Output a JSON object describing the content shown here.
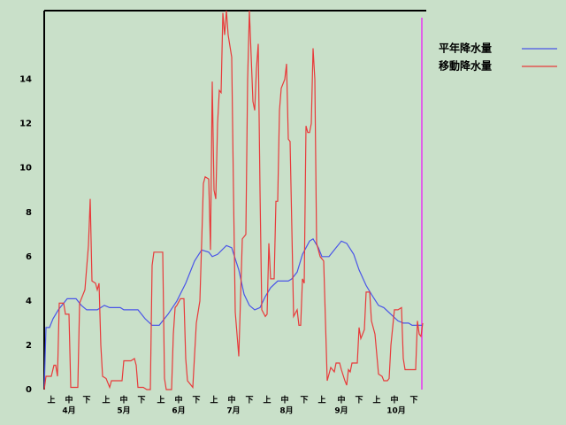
{
  "chart_data": {
    "type": "line",
    "xlim": [
      0,
      214
    ],
    "ylim": [
      0,
      17.1
    ],
    "yticks": [
      0,
      2,
      4,
      6,
      8,
      10,
      12,
      14
    ],
    "xticks": [
      {
        "value": 4,
        "label": "上"
      },
      {
        "value": 14,
        "label": "中"
      },
      {
        "value": 24,
        "label": "下"
      },
      {
        "value": 35,
        "label": "上"
      },
      {
        "value": 45,
        "label": "中"
      },
      {
        "value": 55,
        "label": "下"
      },
      {
        "value": 66,
        "label": "上"
      },
      {
        "value": 76,
        "label": "中"
      },
      {
        "value": 86,
        "label": "下"
      },
      {
        "value": 96,
        "label": "上"
      },
      {
        "value": 106,
        "label": "中"
      },
      {
        "value": 116,
        "label": "下"
      },
      {
        "value": 126,
        "label": "上"
      },
      {
        "value": 136,
        "label": "中"
      },
      {
        "value": 147,
        "label": "下"
      },
      {
        "value": 157,
        "label": "上"
      },
      {
        "value": 168,
        "label": "中"
      },
      {
        "value": 178,
        "label": "下"
      },
      {
        "value": 188,
        "label": "上"
      },
      {
        "value": 198,
        "label": "中"
      },
      {
        "value": 209,
        "label": "下"
      }
    ],
    "month_ticks": [
      {
        "value": 14,
        "label": "4月"
      },
      {
        "value": 45,
        "label": "5月"
      },
      {
        "value": 76,
        "label": "6月"
      },
      {
        "value": 107,
        "label": "7月"
      },
      {
        "value": 137,
        "label": "8月"
      },
      {
        "value": 168,
        "label": "9月"
      },
      {
        "value": 199,
        "label": "10月"
      }
    ],
    "series": [
      {
        "name": "平年降水量",
        "color": "#4a55e8",
        "x": [
          0,
          1,
          3,
          5,
          8,
          11,
          13,
          18,
          21,
          24,
          30,
          34,
          37,
          43,
          45,
          53,
          57,
          61,
          65,
          70,
          75,
          80,
          85,
          89,
          93,
          95,
          98,
          103,
          106,
          110,
          113,
          116,
          119,
          122,
          125,
          128,
          132,
          138,
          140,
          143,
          146,
          150,
          152,
          155,
          157,
          161,
          165,
          168,
          171,
          175,
          178,
          182,
          185,
          189,
          192,
          196,
          200,
          203,
          206,
          208,
          214
        ],
        "values": [
          0,
          2.8,
          2.8,
          3.2,
          3.6,
          3.9,
          4.1,
          4.1,
          3.8,
          3.6,
          3.6,
          3.8,
          3.7,
          3.7,
          3.6,
          3.6,
          3.2,
          2.9,
          2.9,
          3.4,
          4,
          4.8,
          5.8,
          6.3,
          6.2,
          6,
          6.1,
          6.5,
          6.4,
          5.4,
          4.3,
          3.8,
          3.6,
          3.7,
          4.2,
          4.6,
          4.9,
          4.9,
          5,
          5.3,
          6.1,
          6.7,
          6.8,
          6.4,
          6,
          6,
          6.4,
          6.7,
          6.6,
          6.1,
          5.4,
          4.7,
          4.3,
          3.8,
          3.7,
          3.4,
          3.1,
          3,
          3,
          2.9,
          2.9
        ]
      },
      {
        "name": "移動降水量",
        "color": "#e83a3a",
        "x": [
          0,
          1,
          4,
          5.5,
          6.5,
          7.5,
          8.5,
          11,
          12,
          14,
          15,
          19,
          20,
          23,
          25,
          26,
          27,
          29,
          30,
          31,
          32,
          33,
          35,
          37,
          38,
          44,
          45,
          49,
          51,
          52,
          53,
          56,
          58,
          60,
          61,
          62,
          67,
          68,
          69,
          72,
          73,
          74,
          75,
          77,
          79,
          80,
          81,
          84,
          86,
          88,
          89,
          90,
          91,
          93,
          94,
          95,
          96,
          97,
          98,
          99,
          100,
          101,
          102,
          103,
          104,
          106,
          107,
          108,
          110,
          112,
          114,
          115,
          116,
          118,
          119,
          120,
          121,
          122,
          123,
          125,
          126,
          127,
          128,
          130,
          131,
          132,
          133,
          134,
          136,
          137,
          138,
          139,
          141,
          143,
          144,
          145,
          146,
          147,
          148,
          149,
          150,
          151,
          152,
          153,
          154,
          156,
          158,
          160,
          162,
          164,
          165,
          167,
          168,
          170,
          171,
          172,
          173,
          174,
          177,
          178,
          179,
          181,
          182,
          184,
          185,
          187,
          189,
          191,
          192,
          194,
          195,
          196,
          198,
          200,
          202,
          203,
          204,
          210,
          211,
          212,
          213,
          214
        ],
        "values": [
          0,
          0.6,
          0.6,
          1.1,
          1.1,
          0.6,
          3.9,
          3.9,
          3.4,
          3.4,
          0.1,
          0.1,
          3.9,
          4.5,
          6.5,
          8.6,
          4.9,
          4.8,
          4.5,
          4.8,
          2,
          0.6,
          0.5,
          0.1,
          0.4,
          0.4,
          1.3,
          1.3,
          1.4,
          1.1,
          0.1,
          0.1,
          0,
          0,
          5.6,
          6.2,
          6.2,
          0.5,
          0,
          0,
          2.5,
          3.7,
          3.8,
          4.1,
          4.1,
          1.4,
          0.4,
          0.1,
          3,
          4,
          6.6,
          9.3,
          9.6,
          9.5,
          6.3,
          13.9,
          9,
          8.6,
          12,
          13.5,
          13.4,
          17,
          16,
          17.1,
          16,
          15,
          9,
          3.5,
          1.5,
          6.8,
          7,
          14,
          17.1,
          13,
          12.6,
          14.5,
          15.6,
          9,
          3.6,
          3.3,
          3.4,
          6.6,
          5,
          5,
          8.5,
          8.5,
          12.6,
          13.6,
          14,
          14.7,
          11.3,
          11.2,
          3.3,
          3.6,
          2.9,
          2.9,
          5,
          4.8,
          11.9,
          11.6,
          11.6,
          12,
          15.4,
          14,
          6.6,
          6,
          5.8,
          0.4,
          1,
          0.8,
          1.2,
          1.2,
          0.9,
          0.4,
          0.2,
          0.9,
          0.8,
          1.2,
          1.2,
          2.8,
          2.3,
          2.7,
          4.4,
          4.4,
          3.1,
          2.5,
          0.7,
          0.6,
          0.4,
          0.4,
          0.5,
          2,
          3.6,
          3.6,
          3.7,
          1.4,
          0.9,
          0.9,
          3.1,
          2.5,
          2.4,
          3
        ]
      }
    ]
  }
}
